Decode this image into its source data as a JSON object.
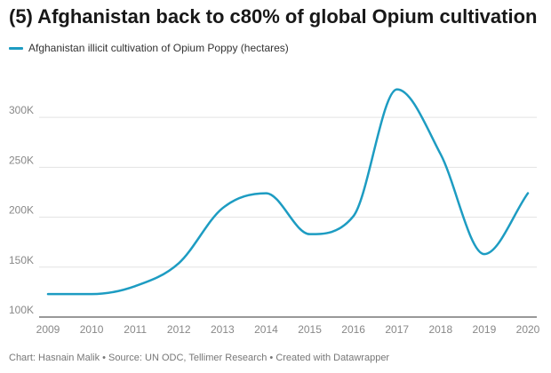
{
  "title": "(5) Afghanistan back to c80% of global Opium cultivation",
  "footer": "Chart: Hasnain Malik • Source: UN ODC, Tellimer Research • Created with Datawrapper",
  "chart_data": {
    "type": "line",
    "x": [
      2009,
      2010,
      2011,
      2012,
      2013,
      2014,
      2015,
      2016,
      2017,
      2018,
      2019,
      2020
    ],
    "series": [
      {
        "name": "Afghanistan illicit cultivation of Opium Poppy (hectares)",
        "values": [
          123000,
          123000,
          131000,
          154000,
          209000,
          224000,
          183000,
          201000,
          328000,
          263000,
          163000,
          224000
        ],
        "color": "#1d9cc2"
      }
    ],
    "xlim": [
      2009,
      2020
    ],
    "ylim": [
      100000,
      325000
    ],
    "yticks": [
      100000,
      150000,
      200000,
      250000,
      300000
    ],
    "ytick_labels": [
      "100K",
      "150K",
      "200K",
      "250K",
      "300K"
    ],
    "xtick_labels": [
      "2009",
      "2010",
      "2011",
      "2012",
      "2013",
      "2014",
      "2015",
      "2016",
      "2017",
      "2018",
      "2019",
      "2020"
    ],
    "grid": true,
    "legend": "top-left"
  }
}
